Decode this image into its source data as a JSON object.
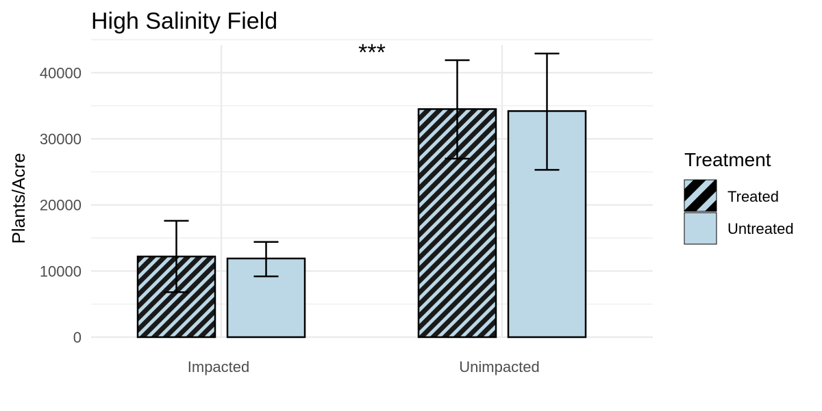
{
  "chart_data": {
    "type": "bar",
    "title": "High Salinity Field",
    "xlabel": "",
    "ylabel": "Plants/Acre",
    "categories": [
      "Impacted",
      "Unimpacted"
    ],
    "ylim": [
      0,
      45000
    ],
    "yticks": [
      0,
      10000,
      20000,
      30000,
      40000
    ],
    "grid": true,
    "legend": {
      "title": "Treatment",
      "placement": "right",
      "entries": [
        {
          "label": "Treated",
          "pattern": "hatched"
        },
        {
          "label": "Untreated",
          "pattern": "solid"
        }
      ]
    },
    "series": [
      {
        "name": "Treated",
        "values": [
          12200,
          34500
        ],
        "error_low": [
          6800,
          27000
        ],
        "error_high": [
          17600,
          41900
        ],
        "pattern": "hatched"
      },
      {
        "name": "Untreated",
        "values": [
          11900,
          34200
        ],
        "error_low": [
          9200,
          25300
        ],
        "error_high": [
          14400,
          42900
        ],
        "pattern": "solid"
      }
    ],
    "annotations": [
      {
        "text": "***",
        "x_category": "Impacted",
        "between": "Impacted-Unimpacted",
        "y": 44000
      }
    ],
    "colors": {
      "bar_fill": "#bcd8e6",
      "hatch": "#1a1a1a",
      "outline": "#000000",
      "grid": "#ebebeb",
      "tick_text": "#4d4d4d"
    }
  }
}
